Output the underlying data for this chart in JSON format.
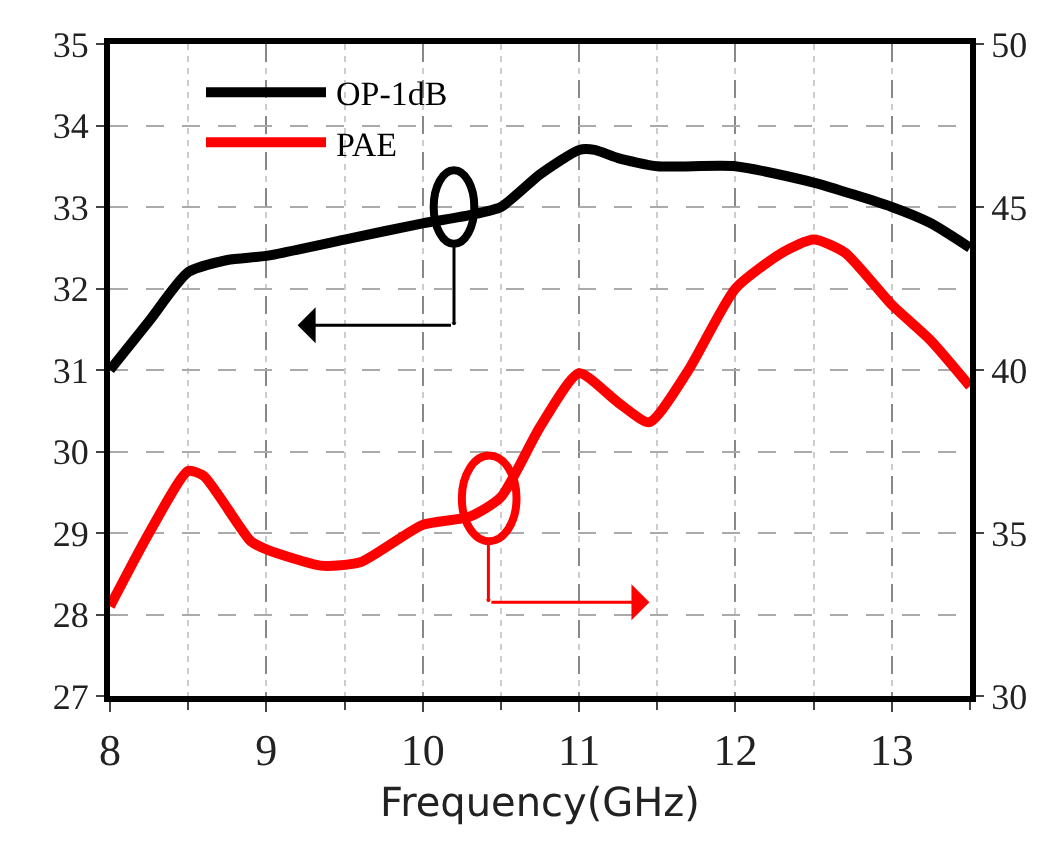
{
  "chart_data": {
    "type": "line",
    "xlabel": "Frequency(GHz)",
    "xlim": [
      8,
      13.5
    ],
    "xticks": [
      8,
      9,
      10,
      11,
      12,
      13
    ],
    "ylim": [
      27,
      35
    ],
    "yticks": [
      27,
      28,
      29,
      30,
      31,
      32,
      33,
      34,
      35
    ],
    "y2lim": [
      30,
      50
    ],
    "y2ticks": [
      30,
      35,
      40,
      45,
      50
    ],
    "grid": true,
    "legend": "top left",
    "marker": "none",
    "line_style": "solid",
    "series": [
      {
        "name": "OP-1dB",
        "color": "#000000",
        "x": [
          8,
          8.25,
          8.5,
          8.75,
          9,
          9.5,
          10,
          10.3,
          10.5,
          10.75,
          11,
          11.1,
          11.25,
          11.5,
          12,
          12.5,
          13,
          13.25,
          13.5
        ],
        "values": [
          31.0,
          31.6,
          32.2,
          32.35,
          32.4,
          32.6,
          32.8,
          32.9,
          33.0,
          33.4,
          33.7,
          33.7,
          33.6,
          33.5,
          33.5,
          33.3,
          33.0,
          32.8,
          32.5
        ]
      },
      {
        "name": "PAE",
        "color": "#ff0000",
        "axis": "y2",
        "x": [
          8,
          8.25,
          8.5,
          8.6,
          8.9,
          9,
          9.35,
          9.6,
          10,
          10.3,
          10.5,
          10.75,
          11,
          11.25,
          11.45,
          11.7,
          12,
          12.3,
          12.5,
          12.7,
          13,
          13.25,
          13.5
        ],
        "values": [
          32.75,
          35,
          36.9,
          36.75,
          34.75,
          34.5,
          34,
          34.1,
          35.25,
          35.5,
          36.1,
          38.25,
          39.9,
          39,
          38.4,
          40,
          42.5,
          43.6,
          44,
          43.6,
          42,
          40.9,
          39.5
        ]
      }
    ]
  }
}
